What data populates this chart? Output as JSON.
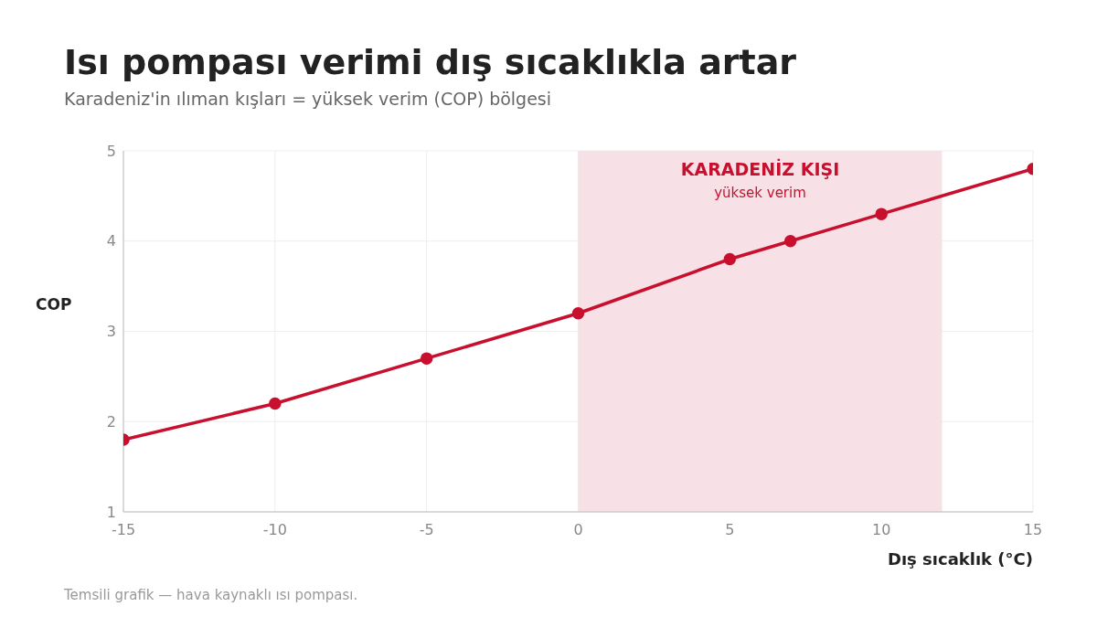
{
  "chart_data": {
    "type": "line",
    "title": "Isı pompası verimi dış sıcaklıkla artar",
    "subtitle": "Karadeniz'in ılıman kışları = yüksek verim (COP) bölgesi",
    "xlabel": "Dış sıcaklık (°C)",
    "ylabel": "COP",
    "x": [
      -15,
      -10,
      -5,
      0,
      5,
      7,
      10,
      15
    ],
    "series": [
      {
        "color": "#c8102e",
        "values": [
          1.8,
          2.2,
          2.7,
          3.2,
          3.8,
          4.0,
          4.3,
          4.8
        ]
      }
    ],
    "xlim": [
      -15,
      15
    ],
    "xticks": [
      -15,
      -10,
      -5,
      0,
      5,
      10,
      15
    ],
    "ylim": [
      1,
      5
    ],
    "yticks": [
      1,
      2,
      3,
      4,
      5
    ],
    "bands": [
      {
        "axis": "x",
        "from": 0,
        "to": 12,
        "label": "KARADENİZ KIŞI",
        "color": "#f8e1e6"
      }
    ],
    "annotations": [
      "yüksek verim",
      "Temsili grafik — hava kaynaklı ısı pompası."
    ],
    "grid": true,
    "legend": false,
    "marker": "circle",
    "line_style": "solid"
  }
}
